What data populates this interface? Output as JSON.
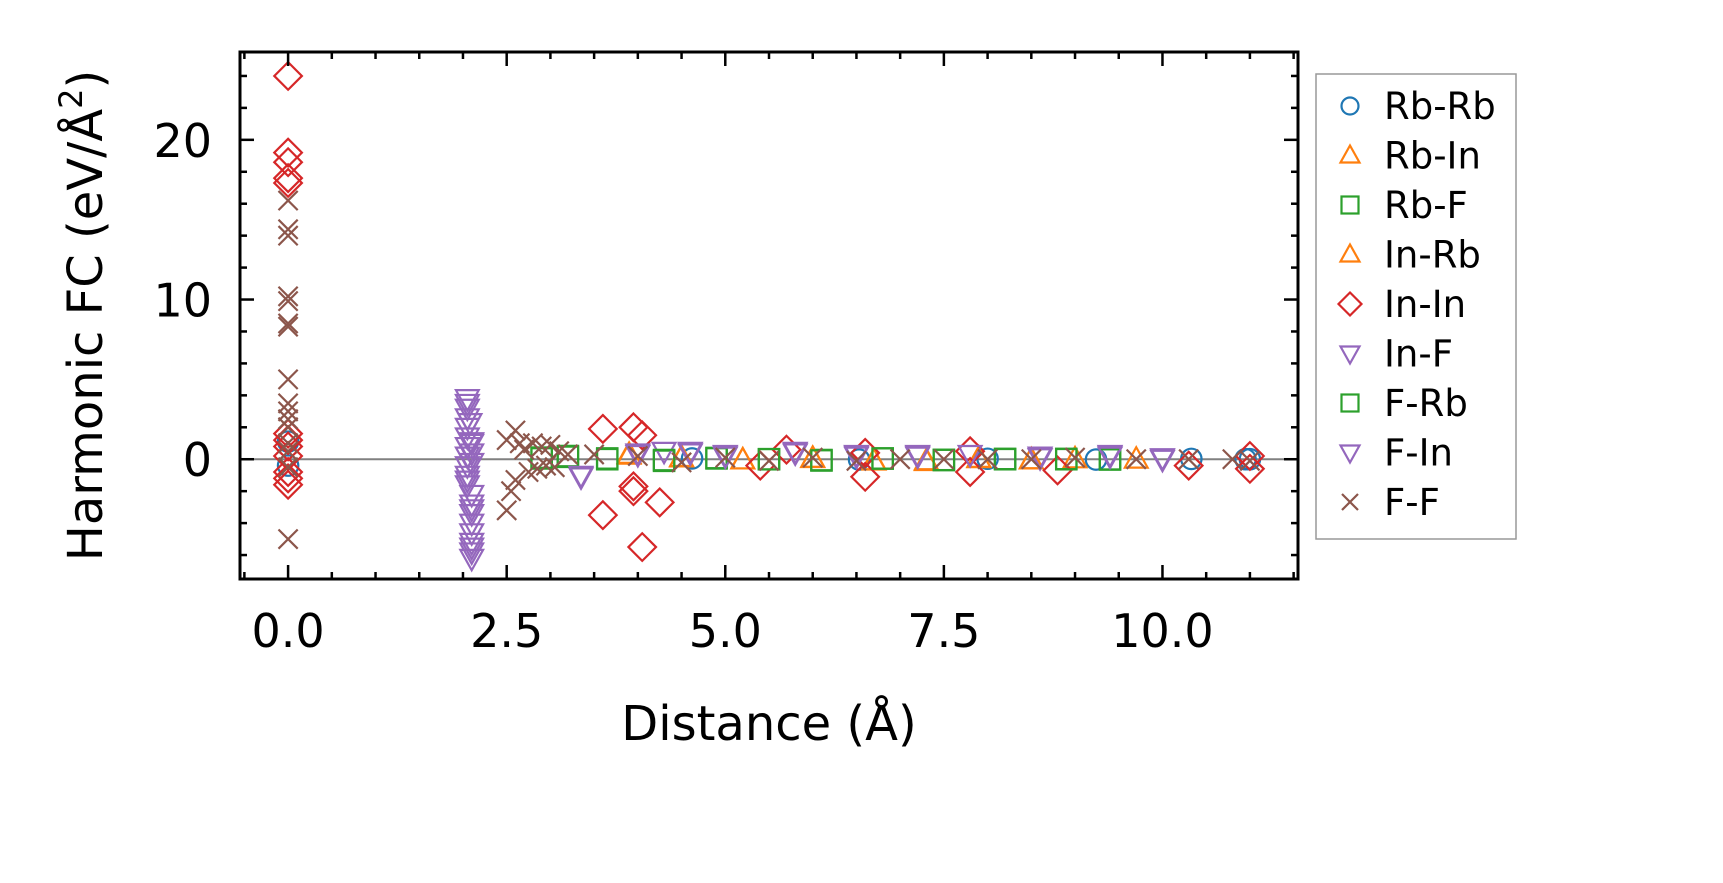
{
  "chart_data": {
    "type": "scatter",
    "title": "",
    "xlabel": "Distance (Å)",
    "ylabel": "Harmonic FC (eV/Å²)",
    "ylabel_parts": {
      "prefix": "Harmonic FC (eV/Å",
      "sup": "2",
      "suffix": ")"
    },
    "xlim": [
      -0.55,
      11.55
    ],
    "ylim": [
      -7.5,
      25.5
    ],
    "xticks": [
      0.0,
      2.5,
      5.0,
      7.5,
      10.0
    ],
    "xtick_labels": [
      "0.0",
      "2.5",
      "5.0",
      "7.5",
      "10.0"
    ],
    "yticks": [
      0,
      10,
      20
    ],
    "ytick_labels": [
      "0",
      "10",
      "20"
    ],
    "zero_line": true,
    "grid": false,
    "legend_position": "outside-right",
    "series": [
      {
        "name": "Rb-Rb",
        "marker": "circle",
        "color": "#1f77b4",
        "x": [
          0.0,
          0.0,
          4.62,
          6.53,
          8.0,
          9.24,
          10.33,
          10.95,
          11.0
        ],
        "y": [
          1.1,
          -0.4,
          0.05,
          -0.02,
          0.03,
          -0.02,
          0.02,
          0.0,
          0.0
        ]
      },
      {
        "name": "Rb-In",
        "marker": "triangle-up",
        "color": "#ff7f0e",
        "x": [
          3.9,
          4.5,
          5.2,
          6.0,
          6.7,
          7.3,
          7.9,
          8.5,
          9.0,
          9.7
        ],
        "y": [
          0.3,
          0.1,
          -0.05,
          0.05,
          -0.1,
          -0.15,
          0.05,
          -0.05,
          0.02,
          0.0
        ]
      },
      {
        "name": "Rb-F",
        "marker": "square",
        "color": "#2ca02c",
        "x": [
          2.9,
          3.2,
          3.65,
          4.3,
          4.9,
          5.5,
          6.1,
          6.8,
          7.5,
          8.2,
          8.9,
          9.4
        ],
        "y": [
          0.1,
          0.2,
          0.05,
          -0.1,
          0.05,
          0.0,
          -0.05,
          0.05,
          -0.05,
          0.0,
          0.02,
          0.0
        ]
      },
      {
        "name": "In-Rb",
        "marker": "triangle-up",
        "color": "#ff7f0e",
        "x": [
          3.9,
          4.5,
          5.2,
          6.0,
          6.7,
          7.3,
          7.9,
          8.5
        ],
        "y": [
          0.25,
          0.08,
          -0.05,
          0.04,
          -0.12,
          -0.1,
          0.03,
          -0.04
        ]
      },
      {
        "name": "In-In",
        "marker": "diamond",
        "color": "#d62728",
        "x": [
          0.0,
          0.0,
          0.0,
          0.0,
          0.0,
          0.0,
          0.0,
          0.0,
          0.0,
          0.0,
          0.0,
          0.0,
          3.6,
          3.6,
          3.95,
          3.95,
          3.95,
          4.05,
          4.05,
          4.25,
          5.4,
          5.7,
          6.6,
          6.6,
          7.8,
          7.8,
          8.8,
          10.3,
          11.0,
          11.0
        ],
        "y": [
          24.0,
          19.2,
          18.6,
          17.6,
          17.3,
          1.6,
          1.2,
          0.8,
          -0.8,
          -1.2,
          -1.6,
          0.2,
          1.9,
          -3.5,
          2.0,
          -1.7,
          -2.0,
          1.5,
          -5.5,
          -2.7,
          -0.4,
          0.6,
          -1.1,
          0.4,
          -0.8,
          0.5,
          -0.7,
          -0.4,
          -0.6,
          0.2
        ]
      },
      {
        "name": "In-F",
        "marker": "triangle-down",
        "color": "#9467bd",
        "x": [
          2.05,
          2.05,
          2.05,
          2.05,
          2.05,
          2.05,
          2.05,
          2.05,
          2.05,
          2.05,
          2.1,
          2.1,
          2.1,
          2.1,
          2.1,
          2.1,
          2.1,
          2.1,
          2.1,
          2.1,
          2.1,
          2.1,
          3.35,
          4.0,
          4.3,
          4.6,
          5.0,
          5.8,
          6.5,
          7.2,
          7.8,
          8.6,
          9.4,
          10.0
        ],
        "y": [
          3.8,
          3.2,
          2.6,
          2.0,
          1.4,
          0.8,
          0.2,
          -0.4,
          -1.0,
          -1.6,
          -2.2,
          -2.8,
          -3.4,
          -4.0,
          -4.6,
          -5.2,
          -5.8,
          -6.2,
          -5.5,
          1.0,
          0.4,
          -0.2,
          -1.1,
          0.4,
          0.5,
          0.5,
          0.3,
          0.5,
          0.3,
          0.3,
          0.3,
          0.2,
          0.3,
          0.1
        ]
      },
      {
        "name": "F-Rb",
        "marker": "square",
        "color": "#2ca02c",
        "x": [
          2.9,
          3.2,
          3.65,
          4.3,
          4.9,
          5.5,
          6.1,
          6.8,
          7.5,
          8.2,
          8.9,
          9.4
        ],
        "y": [
          0.05,
          0.15,
          0.0,
          -0.05,
          0.08,
          0.0,
          -0.08,
          0.04,
          -0.04,
          0.02,
          0.0,
          -0.02
        ]
      },
      {
        "name": "F-In",
        "marker": "triangle-down",
        "color": "#9467bd",
        "x": [
          2.05,
          2.08,
          2.1,
          2.05,
          2.1,
          3.35,
          4.0,
          4.6,
          5.0,
          5.8,
          6.5,
          7.2,
          8.6,
          9.4,
          10.0
        ],
        "y": [
          3.5,
          2.3,
          1.1,
          -1.3,
          -3.1,
          -1.0,
          0.3,
          0.4,
          0.2,
          0.4,
          0.2,
          0.2,
          0.1,
          0.2,
          0.0
        ]
      },
      {
        "name": "F-F",
        "marker": "x",
        "color": "#8c564b",
        "x": [
          0.0,
          0.0,
          0.0,
          0.0,
          0.0,
          0.0,
          0.0,
          0.0,
          0.0,
          0.0,
          0.0,
          0.0,
          0.0,
          0.0,
          0.0,
          0.0,
          2.5,
          2.5,
          2.55,
          2.6,
          2.6,
          2.65,
          2.7,
          2.75,
          2.8,
          2.85,
          2.9,
          2.95,
          3.0,
          3.05,
          3.1,
          3.2,
          3.5,
          4.0,
          4.5,
          5.0,
          5.5,
          6.0,
          6.5,
          7.0,
          7.5,
          8.0,
          8.5,
          9.0,
          9.7,
          10.3,
          10.8,
          11.0
        ],
        "y": [
          16.2,
          14.4,
          14.0,
          10.2,
          9.9,
          8.5,
          8.3,
          5.0,
          3.5,
          3.0,
          2.5,
          2.0,
          1.0,
          0.5,
          -0.5,
          -5.0,
          -3.2,
          1.2,
          -2.0,
          1.8,
          -1.3,
          1.0,
          0.6,
          -0.8,
          1.0,
          -0.6,
          0.8,
          -0.4,
          0.9,
          -0.5,
          0.5,
          0.3,
          0.3,
          0.2,
          -0.2,
          0.1,
          -0.1,
          0.1,
          -0.1,
          0.0,
          0.0,
          0.0,
          0.0,
          0.1,
          0.0,
          0.0,
          0.0,
          -0.1
        ]
      }
    ]
  },
  "colors": {
    "zero_line": "#808080",
    "legend_border": "#999999"
  }
}
